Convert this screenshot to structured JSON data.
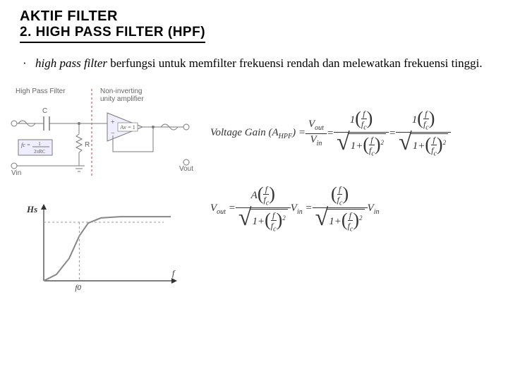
{
  "title1": "AKTIF FILTER",
  "title2": "2. HIGH PASS FILTER (HPF)",
  "bullet": {
    "italic": "high pass filter",
    "rest": " berfungsi untuk memfilter frekuensi rendah dan melewatkan frekuensi tinggi."
  },
  "circuit": {
    "label_hpf": "High Pass Filter",
    "label_amp": "Non-inverting unity amplifier",
    "label_C": "C",
    "label_R": "R",
    "label_Vin": "Vin",
    "label_Vout": "Vout",
    "label_Av": "Av = 1",
    "fc_formula": "fc = 1/(2πRC)",
    "colors": {
      "stroke": "#7a7a7a",
      "dash": "#b44",
      "fill_bg": "#eef"
    }
  },
  "graph": {
    "xlabel": "f",
    "ylabel": "Hs",
    "tick": "f0",
    "line_color": "#888888",
    "x_axis_color": "#333",
    "y_axis_color": "#333",
    "dash_color": "#999",
    "xrange": [
      0,
      10
    ],
    "yrange": [
      0,
      1.1
    ],
    "points": [
      [
        0,
        0
      ],
      [
        1,
        0.1
      ],
      [
        2,
        0.35
      ],
      [
        2.8,
        0.7
      ],
      [
        3.5,
        0.9
      ],
      [
        4.5,
        0.98
      ],
      [
        6,
        1.0
      ],
      [
        10,
        1.0
      ]
    ],
    "f0_x": 2.8
  },
  "eq1": {
    "lhs": "Voltage  Gain (A",
    "lhs_sub": "HPF",
    "vout": "V",
    "vout_sub": "out",
    "vin": "V",
    "vin_sub": "in",
    "f": "f",
    "fc": "f",
    "fc_sub": "c"
  },
  "eq2": {
    "lhs": "V",
    "lhs_sub": "out",
    "A": "A",
    "Vin": "V",
    "Vin_sub": "in"
  }
}
